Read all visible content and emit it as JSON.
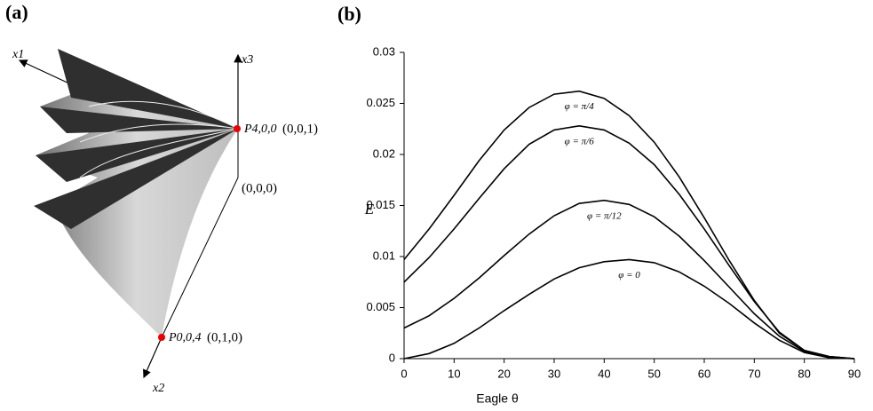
{
  "panel_a": {
    "label": "(a)",
    "axes": [
      "x1",
      "x3",
      "x2"
    ],
    "origin": "(0,0,0)",
    "points": [
      {
        "name": "P4,0,0",
        "coords": "(0,0,1)"
      },
      {
        "name": "P0,0,4",
        "coords": "(0,1,0)"
      }
    ]
  },
  "chart_data": {
    "type": "line",
    "panel_label": "(b)",
    "x_label": "Eagle θ",
    "y_label": "E",
    "x": [
      0,
      5,
      10,
      15,
      20,
      25,
      30,
      35,
      40,
      45,
      50,
      55,
      60,
      65,
      70,
      75,
      80,
      85,
      90
    ],
    "xlim": [
      0,
      90
    ],
    "xticks": [
      0,
      10,
      20,
      30,
      40,
      50,
      60,
      70,
      80,
      90
    ],
    "ylim": [
      0,
      0.03
    ],
    "yticks": [
      0,
      0.005,
      0.01,
      0.015,
      0.02,
      0.025,
      0.03
    ],
    "series": [
      {
        "name": "φ = π/4",
        "color": "#000000",
        "values": [
          0.0097,
          0.0127,
          0.016,
          0.0194,
          0.0224,
          0.0246,
          0.0259,
          0.0262,
          0.0255,
          0.0238,
          0.0212,
          0.0178,
          0.0138,
          0.0096,
          0.0057,
          0.0025,
          0.0008,
          0.0002,
          0
        ]
      },
      {
        "name": "φ = π/6",
        "color": "#000000",
        "values": [
          0.0075,
          0.0099,
          0.0127,
          0.0157,
          0.0186,
          0.021,
          0.0224,
          0.0228,
          0.0224,
          0.0211,
          0.019,
          0.0161,
          0.0127,
          0.0091,
          0.0056,
          0.0026,
          0.0008,
          0.0002,
          0
        ]
      },
      {
        "name": "φ = π/12",
        "color": "#000000",
        "values": [
          0.003,
          0.0042,
          0.0059,
          0.0079,
          0.0101,
          0.0122,
          0.014,
          0.0152,
          0.0155,
          0.0151,
          0.0139,
          0.012,
          0.0096,
          0.007,
          0.0044,
          0.0022,
          0.0007,
          0.0001,
          0
        ]
      },
      {
        "name": "φ = 0",
        "color": "#000000",
        "values": [
          0,
          0.0005,
          0.0015,
          0.003,
          0.0047,
          0.0063,
          0.0078,
          0.0089,
          0.0095,
          0.0097,
          0.0094,
          0.0085,
          0.0071,
          0.0054,
          0.0035,
          0.0018,
          0.0006,
          0.0001,
          0
        ]
      }
    ]
  }
}
